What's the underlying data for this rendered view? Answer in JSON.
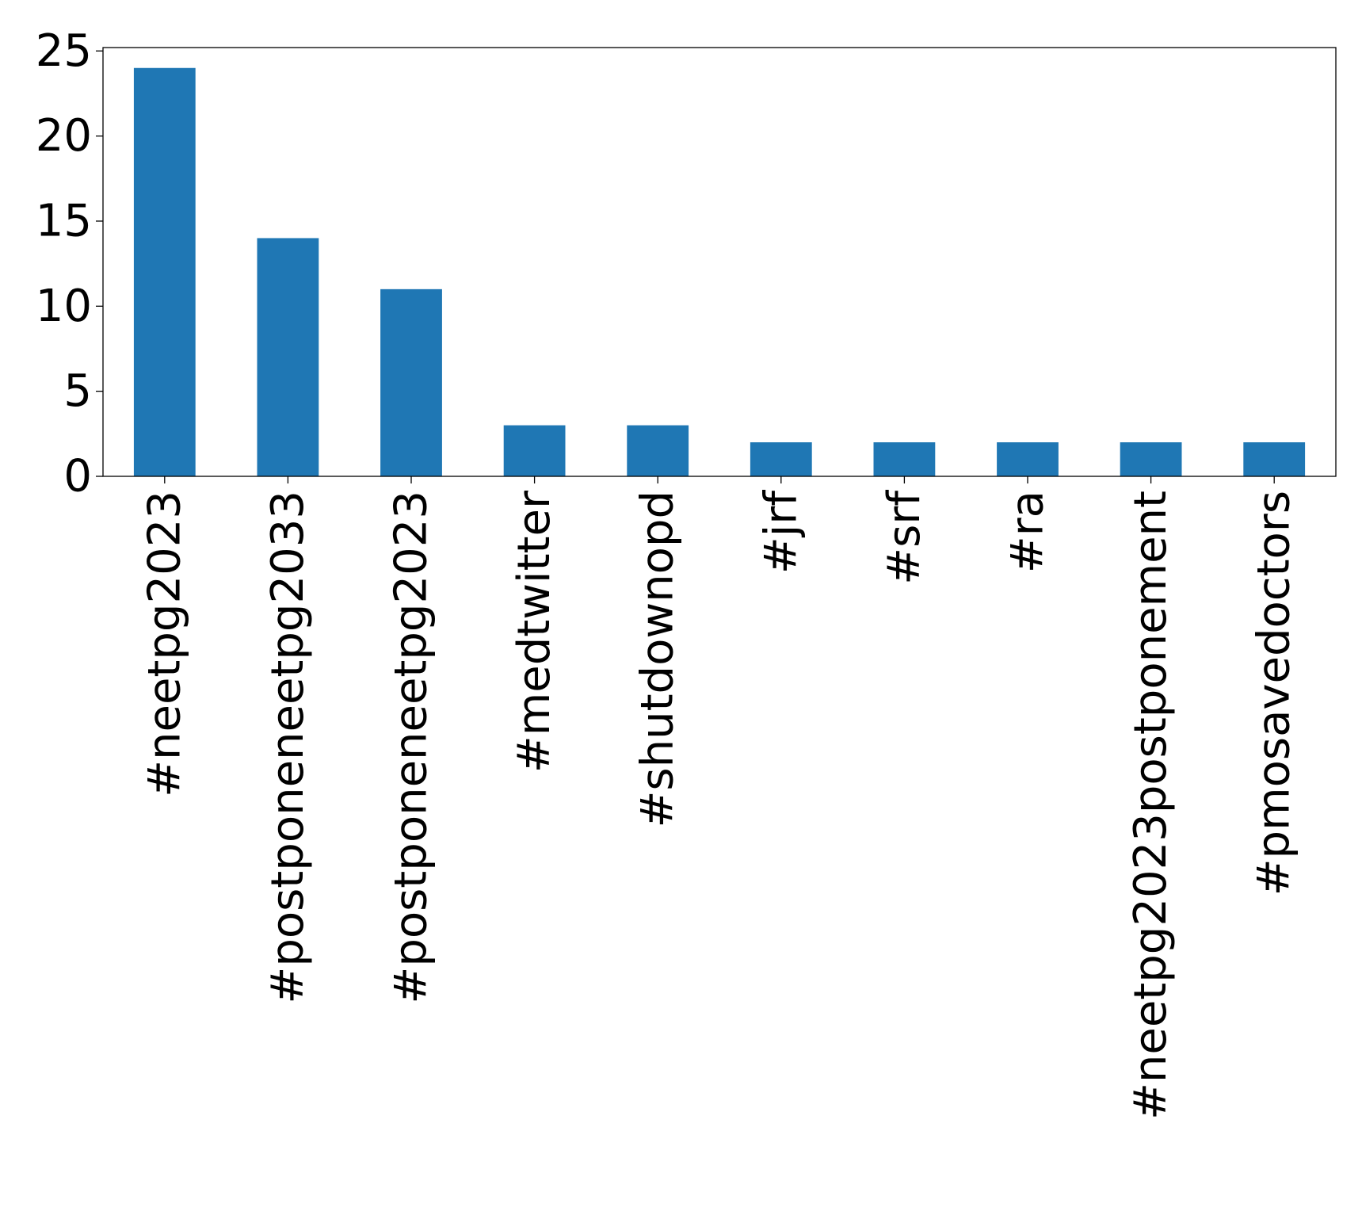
{
  "chart_data": {
    "type": "bar",
    "title": "",
    "xlabel": "",
    "ylabel": "",
    "categories": [
      "#neetpg2023",
      "#postponeneetpg2033",
      "#postponeneetpg2023",
      "#medtwitter",
      "#shutdownopd",
      "#jrf",
      "#srf",
      "#ra",
      "#neetpg2023postponement",
      "#pmosavedoctors"
    ],
    "values": [
      24,
      14,
      11,
      3,
      3,
      2,
      2,
      2,
      2,
      2
    ],
    "ylim": [
      0,
      25.2
    ],
    "yticks": [
      0,
      5,
      10,
      15,
      20,
      25
    ],
    "grid": false,
    "legend": "none",
    "bar_color": "#1f77b4"
  }
}
